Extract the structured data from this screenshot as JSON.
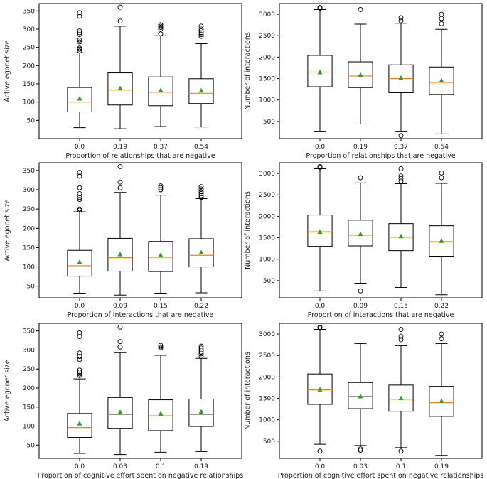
{
  "chart_data": [
    {
      "type": "box",
      "xlabel": "Proportion of relationships that are negative",
      "ylabel": "Active egonet size",
      "categories": [
        "0.0",
        "0.19",
        "0.37",
        "0.54"
      ],
      "ylim": [
        0,
        370
      ],
      "yticks": [
        50,
        100,
        150,
        200,
        250,
        300,
        350
      ],
      "boxes": [
        {
          "whislo": 30,
          "q1": 73,
          "med": 100,
          "q3": 140,
          "whishi": 235,
          "mean": 110,
          "fliers": [
            240,
            245,
            248,
            265,
            270,
            285,
            290,
            295,
            335,
            345
          ]
        },
        {
          "whislo": 27,
          "q1": 92,
          "med": 133,
          "q3": 180,
          "whishi": 308,
          "mean": 138,
          "fliers": [
            322,
            360
          ]
        },
        {
          "whislo": 33,
          "q1": 90,
          "med": 127,
          "q3": 169,
          "whishi": 282,
          "mean": 133,
          "fliers": [
            287,
            300,
            305,
            308,
            312
          ]
        },
        {
          "whislo": 32,
          "q1": 96,
          "med": 124,
          "q3": 164,
          "whishi": 260,
          "mean": 132,
          "fliers": [
            280,
            285,
            290,
            295,
            300,
            308
          ]
        }
      ]
    },
    {
      "type": "box",
      "xlabel": "Proportion of relationships that are negative",
      "ylabel": "Number of interactions",
      "categories": [
        "0.0",
        "0.19",
        "0.37",
        "0.54"
      ],
      "ylim": [
        100,
        3250
      ],
      "yticks": [
        500,
        1000,
        1500,
        2000,
        2500,
        3000
      ],
      "boxes": [
        {
          "whislo": 260,
          "q1": 1310,
          "med": 1650,
          "q3": 2040,
          "whishi": 3110,
          "mean": 1650,
          "fliers": [
            3140,
            3160
          ]
        },
        {
          "whislo": 440,
          "q1": 1290,
          "med": 1560,
          "q3": 1890,
          "whishi": 2770,
          "mean": 1590,
          "fliers": [
            3110
          ]
        },
        {
          "whislo": 260,
          "q1": 1170,
          "med": 1500,
          "q3": 1820,
          "whishi": 2790,
          "mean": 1520,
          "fliers": [
            170,
            2850,
            2920
          ]
        },
        {
          "whislo": 210,
          "q1": 1130,
          "med": 1410,
          "q3": 1770,
          "whishi": 2650,
          "mean": 1460,
          "fliers": [
            2780,
            2900,
            3000
          ]
        }
      ]
    },
    {
      "type": "box",
      "xlabel": "Proportion of interactions that are negative",
      "ylabel": "Active egonet size",
      "categories": [
        "0.0",
        "0.09",
        "0.15",
        "0.22"
      ],
      "ylim": [
        20,
        370
      ],
      "yticks": [
        50,
        100,
        150,
        200,
        250,
        300,
        350
      ],
      "boxes": [
        {
          "whislo": 32,
          "q1": 76,
          "med": 103,
          "q3": 143,
          "whishi": 243,
          "mean": 113,
          "fliers": [
            247,
            250,
            275,
            280,
            290,
            305,
            335,
            345
          ]
        },
        {
          "whislo": 27,
          "q1": 89,
          "med": 124,
          "q3": 174,
          "whishi": 293,
          "mean": 133,
          "fliers": [
            305,
            320,
            360
          ]
        },
        {
          "whislo": 32,
          "q1": 88,
          "med": 125,
          "q3": 166,
          "whishi": 286,
          "mean": 131,
          "fliers": [
            300,
            305,
            310
          ]
        },
        {
          "whislo": 33,
          "q1": 100,
          "med": 130,
          "q3": 173,
          "whishi": 277,
          "mean": 138,
          "fliers": [
            280,
            285,
            290,
            295,
            302,
            308
          ]
        }
      ]
    },
    {
      "type": "box",
      "xlabel": "Proportion of interactions that are negative",
      "ylabel": "Number of interactions",
      "categories": [
        "0.0",
        "0.09",
        "0.15",
        "0.22"
      ],
      "ylim": [
        100,
        3250
      ],
      "yticks": [
        500,
        1000,
        1500,
        2000,
        2500,
        3000
      ],
      "boxes": [
        {
          "whislo": 260,
          "q1": 1300,
          "med": 1640,
          "q3": 2030,
          "whishi": 3110,
          "mean": 1640,
          "fliers": [
            3140,
            3160
          ]
        },
        {
          "whislo": 440,
          "q1": 1310,
          "med": 1560,
          "q3": 1910,
          "whishi": 2780,
          "mean": 1590,
          "fliers": [
            260,
            2900
          ]
        },
        {
          "whislo": 340,
          "q1": 1200,
          "med": 1510,
          "q3": 1830,
          "whishi": 2760,
          "mean": 1540,
          "fliers": [
            2820,
            2880,
            2940,
            3110
          ]
        },
        {
          "whislo": 170,
          "q1": 1070,
          "med": 1410,
          "q3": 1780,
          "whishi": 2770,
          "mean": 1430,
          "fliers": [
            2900,
            3010
          ]
        }
      ]
    },
    {
      "type": "box",
      "xlabel": "Proportion of cognitive effort spent on negative relationships",
      "ylabel": "Active egonet size",
      "categories": [
        "0.0",
        "0.03",
        "0.1",
        "0.19"
      ],
      "ylim": [
        15,
        370
      ],
      "yticks": [
        50,
        100,
        150,
        200,
        250,
        300,
        350
      ],
      "boxes": [
        {
          "whislo": 28,
          "q1": 70,
          "med": 96,
          "q3": 133,
          "whishi": 224,
          "mean": 107,
          "fliers": [
            233,
            237,
            242,
            247,
            275,
            283,
            292,
            335,
            345
          ]
        },
        {
          "whislo": 25,
          "q1": 94,
          "med": 130,
          "q3": 175,
          "whishi": 293,
          "mean": 137,
          "fliers": [
            308,
            322,
            360
          ]
        },
        {
          "whislo": 31,
          "q1": 88,
          "med": 127,
          "q3": 169,
          "whishi": 286,
          "mean": 133,
          "fliers": [
            305,
            308,
            312
          ]
        },
        {
          "whislo": 33,
          "q1": 99,
          "med": 130,
          "q3": 171,
          "whishi": 278,
          "mean": 138,
          "fliers": [
            283,
            290,
            295,
            300,
            305,
            310
          ]
        }
      ]
    },
    {
      "type": "box",
      "xlabel": "Proportion of cognitive effort spent on negative relationships",
      "ylabel": "Number of interactions",
      "categories": [
        "0.0",
        "0.03",
        "0.1",
        "0.19"
      ],
      "ylim": [
        100,
        3250
      ],
      "yticks": [
        500,
        1000,
        1500,
        2000,
        2500,
        3000
      ],
      "boxes": [
        {
          "whislo": 430,
          "q1": 1360,
          "med": 1700,
          "q3": 2070,
          "whishi": 3110,
          "mean": 1710,
          "fliers": [
            270,
            3140,
            3160
          ]
        },
        {
          "whislo": 400,
          "q1": 1260,
          "med": 1550,
          "q3": 1870,
          "whishi": 2780,
          "mean": 1550,
          "fliers": [
            290,
            320
          ]
        },
        {
          "whislo": 350,
          "q1": 1200,
          "med": 1480,
          "q3": 1810,
          "whishi": 2730,
          "mean": 1510,
          "fliers": [
            270,
            2870,
            2950,
            3110
          ]
        },
        {
          "whislo": 170,
          "q1": 1080,
          "med": 1400,
          "q3": 1780,
          "whishi": 2780,
          "mean": 1440,
          "fliers": [
            2890,
            3000
          ]
        }
      ]
    }
  ],
  "style": {
    "box_color": "#000000",
    "median_color": "#ff7f0e",
    "mean_color": "#2ca02c"
  }
}
